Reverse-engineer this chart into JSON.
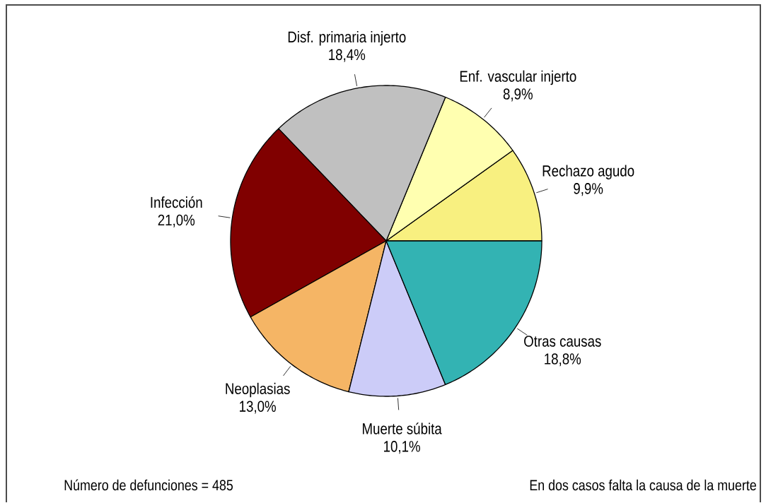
{
  "chart_data": {
    "type": "pie",
    "categories": [
      "Rechazo agudo",
      "Enf. vascular injerto",
      "Disf. primaria injerto",
      "Infección",
      "Neoplasias",
      "Muerte súbita",
      "Otras causas"
    ],
    "values": [
      9.9,
      8.9,
      18.4,
      21.0,
      13.0,
      10.1,
      18.8
    ],
    "value_labels": [
      "9,9%",
      "8,9%",
      "18,4%",
      "21,0%",
      "13,0%",
      "10,1%",
      "18,8%"
    ],
    "colors": [
      "#f8f080",
      "#ffffb0",
      "#c0c0c0",
      "#800000",
      "#f5b565",
      "#ccccf8",
      "#33b3b3"
    ],
    "annotations": [
      "Número de defunciones = 485",
      "En dos casos falta la causa de la muerte"
    ]
  }
}
